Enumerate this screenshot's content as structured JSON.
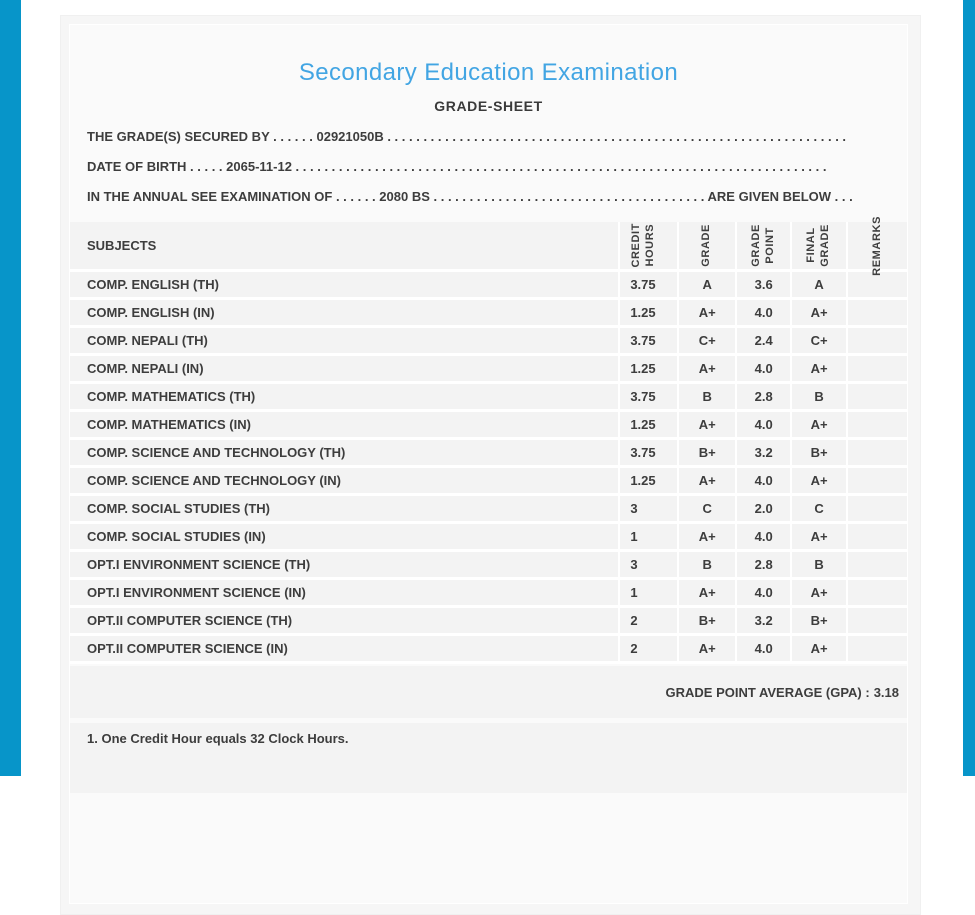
{
  "page": {
    "title": "Secondary Education Examination",
    "subtitle": "GRADE-SHEET",
    "accent_strip_color": "#0795c9",
    "title_color": "#42a5e3"
  },
  "info_lines": {
    "grades_secured": {
      "label": "THE GRADE(S) SECURED BY",
      "leader1": " . . . . . . ",
      "value": "02921050B",
      "leader2": " . . . . . . . . . . . . . . . . . . . . . . . . . . . . . . . . . . . . . . . . . . . . . . . . . . . . . . . . . . . . . . . ."
    },
    "date_of_birth": {
      "label": "DATE OF BIRTH",
      "leader1": " . . . . . ",
      "value": "2065-11-12",
      "leader2": " . . . . . . . . . . . . . . . . . . . . . . . . . . . . . . . . . . . . . . . . . . . . . . . . . . . . . . . . . . . . . . . . . . . . . . . . . ."
    },
    "examination": {
      "label": "IN THE ANNUAL SEE EXAMINATION OF",
      "leader1": " . . . . . . ",
      "value": "2080 BS",
      "leader2": " . . . . . . . . . . . . . . . . . . . . . . . . . . . . . . . . . . . . . . ",
      "suffix": "ARE GIVEN BELOW",
      "leader3": " . . ."
    }
  },
  "table": {
    "headers": {
      "subjects": "SUBJECTS",
      "credit_hours": "CREDIT\nHOURS",
      "grade": "GRADE",
      "grade_point": "GRADE\nPOINT",
      "final_grade": "FINAL\nGRADE",
      "remarks": "REMARKS"
    },
    "rows": [
      {
        "subject": "COMP. ENGLISH (TH)",
        "credit_hours": "3.75",
        "grade": "A",
        "grade_point": "3.6",
        "final_grade": "A",
        "remarks": ""
      },
      {
        "subject": "COMP. ENGLISH (IN)",
        "credit_hours": "1.25",
        "grade": "A+",
        "grade_point": "4.0",
        "final_grade": "A+",
        "remarks": ""
      },
      {
        "subject": "COMP. NEPALI (TH)",
        "credit_hours": "3.75",
        "grade": "C+",
        "grade_point": "2.4",
        "final_grade": "C+",
        "remarks": ""
      },
      {
        "subject": "COMP. NEPALI (IN)",
        "credit_hours": "1.25",
        "grade": "A+",
        "grade_point": "4.0",
        "final_grade": "A+",
        "remarks": ""
      },
      {
        "subject": "COMP. MATHEMATICS (TH)",
        "credit_hours": "3.75",
        "grade": "B",
        "grade_point": "2.8",
        "final_grade": "B",
        "remarks": ""
      },
      {
        "subject": "COMP. MATHEMATICS (IN)",
        "credit_hours": "1.25",
        "grade": "A+",
        "grade_point": "4.0",
        "final_grade": "A+",
        "remarks": ""
      },
      {
        "subject": "COMP. SCIENCE AND TECHNOLOGY (TH)",
        "credit_hours": "3.75",
        "grade": "B+",
        "grade_point": "3.2",
        "final_grade": "B+",
        "remarks": ""
      },
      {
        "subject": "COMP. SCIENCE AND TECHNOLOGY (IN)",
        "credit_hours": "1.25",
        "grade": "A+",
        "grade_point": "4.0",
        "final_grade": "A+",
        "remarks": ""
      },
      {
        "subject": "COMP. SOCIAL STUDIES (TH)",
        "credit_hours": "3",
        "grade": "C",
        "grade_point": "2.0",
        "final_grade": "C",
        "remarks": ""
      },
      {
        "subject": "COMP. SOCIAL STUDIES (IN)",
        "credit_hours": "1",
        "grade": "A+",
        "grade_point": "4.0",
        "final_grade": "A+",
        "remarks": ""
      },
      {
        "subject": "OPT.I ENVIRONMENT SCIENCE (TH)",
        "credit_hours": "3",
        "grade": "B",
        "grade_point": "2.8",
        "final_grade": "B",
        "remarks": ""
      },
      {
        "subject": "OPT.I ENVIRONMENT SCIENCE (IN)",
        "credit_hours": "1",
        "grade": "A+",
        "grade_point": "4.0",
        "final_grade": "A+",
        "remarks": ""
      },
      {
        "subject": "OPT.II COMPUTER SCIENCE (TH)",
        "credit_hours": "2",
        "grade": "B+",
        "grade_point": "3.2",
        "final_grade": "B+",
        "remarks": ""
      },
      {
        "subject": "OPT.II COMPUTER SCIENCE (IN)",
        "credit_hours": "2",
        "grade": "A+",
        "grade_point": "4.0",
        "final_grade": "A+",
        "remarks": ""
      }
    ]
  },
  "summary": {
    "gpa_label": "GRADE POINT AVERAGE (GPA) :",
    "gpa_value": "3.18"
  },
  "footer": {
    "note_1": "1. One Credit Hour equals 32 Clock Hours."
  }
}
